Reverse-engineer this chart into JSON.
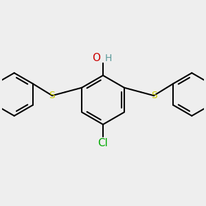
{
  "background_color": "#eeeeee",
  "bond_color": "#000000",
  "bond_width": 1.5,
  "dbo": 0.048,
  "figsize": [
    3.0,
    3.0
  ],
  "dpi": 100,
  "O_color": "#cc0000",
  "H_color": "#5a9a9a",
  "S_color": "#cccc00",
  "Cl_color": "#00aa00",
  "xlim": [
    -1.65,
    1.65
  ],
  "ylim": [
    -1.05,
    0.85
  ]
}
